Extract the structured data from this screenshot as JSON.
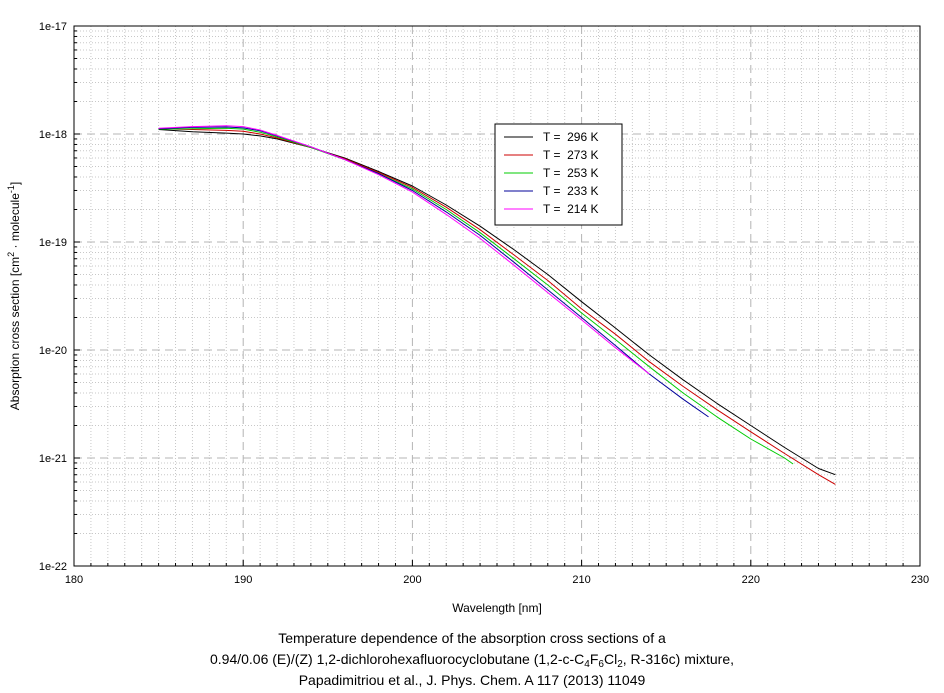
{
  "chart_data": {
    "type": "line",
    "xlabel": "Wavelength [nm]",
    "ylabel_parts": [
      "Absorption cross section [cm",
      "2",
      " · molecule",
      "-1",
      "]"
    ],
    "xlim": [
      180,
      230
    ],
    "ylim": [
      1e-22,
      1e-17
    ],
    "yscale": "log",
    "x_ticks": [
      "180",
      "190",
      "200",
      "210",
      "220",
      "230"
    ],
    "y_ticks": [
      "1e-22",
      "1e-21",
      "1e-20",
      "1e-19",
      "1e-18",
      "1e-17"
    ],
    "grid": true,
    "legend_position": "top-center",
    "series": [
      {
        "name": "T =  296 K",
        "color": "#000000",
        "x": [
          185,
          187,
          189,
          190,
          191,
          192,
          194,
          196,
          198,
          200,
          202,
          204,
          206,
          208,
          210,
          212,
          214,
          216,
          218,
          220,
          222,
          224,
          225
        ],
        "y": [
          1.1e-18,
          1.05e-18,
          1.02e-18,
          1e-18,
          9.6e-19,
          9e-19,
          7.5e-19,
          6e-19,
          4.5e-19,
          3.3e-19,
          2.2e-19,
          1.4e-19,
          8.5e-20,
          5e-20,
          2.8e-20,
          1.6e-20,
          9e-21,
          5.3e-21,
          3.2e-21,
          2e-21,
          1.25e-21,
          8e-22,
          7e-22
        ]
      },
      {
        "name": "T =  273 K",
        "color": "#cc0000",
        "x": [
          185,
          187,
          189,
          190,
          191,
          192,
          194,
          196,
          198,
          200,
          202,
          204,
          206,
          208,
          210,
          212,
          214,
          216,
          218,
          220,
          222,
          224,
          225
        ],
        "y": [
          1.12e-18,
          1.1e-18,
          1.08e-18,
          1.06e-18,
          1e-18,
          9.2e-19,
          7.5e-19,
          5.9e-19,
          4.4e-19,
          3.2e-19,
          2.1e-19,
          1.3e-19,
          7.6e-20,
          4.4e-20,
          2.4e-20,
          1.4e-20,
          7.8e-21,
          4.6e-21,
          2.8e-21,
          1.75e-21,
          1.1e-21,
          7e-22,
          5.7e-22
        ]
      },
      {
        "name": "T =  253 K",
        "color": "#00cc00",
        "x": [
          185,
          187,
          189,
          190,
          191,
          192,
          194,
          196,
          198,
          200,
          202,
          204,
          206,
          208,
          210,
          212,
          214,
          216,
          218,
          220,
          222,
          222.5
        ],
        "y": [
          1.11e-18,
          1.12e-18,
          1.13e-18,
          1.11e-18,
          1.04e-18,
          9.4e-19,
          7.5e-19,
          5.8e-19,
          4.3e-19,
          3.1e-19,
          2e-19,
          1.22e-19,
          7e-20,
          4e-20,
          2.2e-20,
          1.25e-20,
          7e-21,
          4e-21,
          2.4e-21,
          1.5e-21,
          1e-21,
          8.8e-22
        ]
      },
      {
        "name": "T =  233 K",
        "color": "#000099",
        "x": [
          185,
          187,
          189,
          190,
          191,
          192,
          194,
          196,
          198,
          200,
          202,
          204,
          206,
          208,
          210,
          212,
          214,
          216,
          217.5
        ],
        "y": [
          1.12e-18,
          1.15e-18,
          1.16e-18,
          1.14e-18,
          1.07e-18,
          9.6e-19,
          7.6e-19,
          5.8e-19,
          4.3e-19,
          3e-19,
          1.9e-19,
          1.15e-19,
          6.5e-20,
          3.6e-20,
          2e-20,
          1.1e-20,
          6e-21,
          3.5e-21,
          2.4e-21
        ]
      },
      {
        "name": "T =  214 K",
        "color": "#ff00ff",
        "x": [
          185,
          187,
          189,
          190,
          191,
          192,
          194,
          196,
          198,
          200,
          202,
          204,
          206,
          208,
          210,
          212,
          214
        ],
        "y": [
          1.13e-18,
          1.17e-18,
          1.19e-18,
          1.17e-18,
          1.09e-18,
          9.7e-19,
          7.6e-19,
          5.8e-19,
          4.2e-19,
          2.9e-19,
          1.8e-19,
          1.08e-19,
          6.1e-20,
          3.4e-20,
          1.9e-20,
          1.05e-20,
          6e-21
        ]
      }
    ]
  },
  "caption": {
    "line1": "Temperature dependence of the absorption cross sections of a",
    "line2_parts": [
      "0.94/0.06 (E)/(Z) 1,2-dichlorohexafluorocyclobutane (1,2-c-C",
      "4",
      "F",
      "6",
      "Cl",
      "2",
      ", R-316c) mixture,"
    ],
    "line3": "Papadimitriou et al., J. Phys. Chem. A 117 (2013) 11049"
  }
}
